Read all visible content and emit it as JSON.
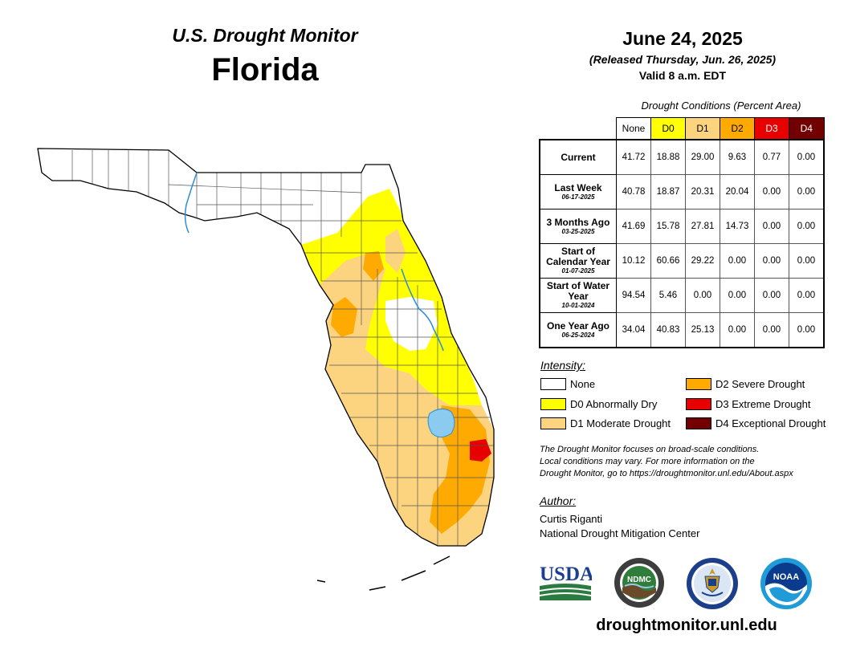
{
  "header": {
    "super_title": "U.S. Drought Monitor",
    "state": "Florida",
    "map_date": "June 24, 2025",
    "released": "(Released Thursday, Jun. 26, 2025)",
    "valid": "Valid 8 a.m. EDT"
  },
  "table": {
    "caption": "Drought Conditions (Percent Area)",
    "columns": [
      "None",
      "D0",
      "D1",
      "D2",
      "D3",
      "D4"
    ],
    "column_colors": [
      "#ffffff",
      "#ffff00",
      "#fcd37f",
      "#ffaa00",
      "#e60000",
      "#730000"
    ],
    "rows": [
      {
        "label": "Current",
        "date": "",
        "values": [
          "41.72",
          "18.88",
          "29.00",
          "9.63",
          "0.77",
          "0.00"
        ]
      },
      {
        "label": "Last Week",
        "date": "06-17-2025",
        "values": [
          "40.78",
          "18.87",
          "20.31",
          "20.04",
          "0.00",
          "0.00"
        ]
      },
      {
        "label": "3 Months Ago",
        "date": "03-25-2025",
        "values": [
          "41.69",
          "15.78",
          "27.81",
          "14.73",
          "0.00",
          "0.00"
        ]
      },
      {
        "label": "Start of Calendar Year",
        "date": "01-07-2025",
        "values": [
          "10.12",
          "60.66",
          "29.22",
          "0.00",
          "0.00",
          "0.00"
        ]
      },
      {
        "label": "Start of Water Year",
        "date": "10-01-2024",
        "values": [
          "94.54",
          "5.46",
          "0.00",
          "0.00",
          "0.00",
          "0.00"
        ]
      },
      {
        "label": "One Year Ago",
        "date": "06-25-2024",
        "values": [
          "34.04",
          "40.83",
          "25.13",
          "0.00",
          "0.00",
          "0.00"
        ]
      }
    ]
  },
  "legend": {
    "title": "Intensity:",
    "items": [
      {
        "label": "None",
        "color": "#ffffff"
      },
      {
        "label": "D0 Abnormally Dry",
        "color": "#ffff00"
      },
      {
        "label": "D1 Moderate Drought",
        "color": "#fcd37f"
      },
      {
        "label": "D2 Severe Drought",
        "color": "#ffaa00"
      },
      {
        "label": "D3 Extreme Drought",
        "color": "#e60000"
      },
      {
        "label": "D4 Exceptional Drought",
        "color": "#730000"
      }
    ]
  },
  "disclaimer": {
    "line1": "The Drought Monitor focuses on broad-scale conditions.",
    "line2": "Local conditions may vary. For more information on the",
    "line3": "Drought Monitor, go to https://droughtmonitor.unl.edu/About.aspx"
  },
  "author": {
    "title": "Author:",
    "name": "Curtis Riganti",
    "organization": "National Drought Mitigation Center"
  },
  "logos": {
    "usda": "USDA",
    "ndmc": "NDMC",
    "ndmc_ring": "NATIONAL DROUGHT MITIGATION CENTER",
    "noaa": "NOAA"
  },
  "footer": {
    "url": "droughtmonitor.unl.edu"
  },
  "map": {
    "region": "Florida",
    "water_color": "#8ccbf0",
    "river_color": "#2a8fd6"
  }
}
